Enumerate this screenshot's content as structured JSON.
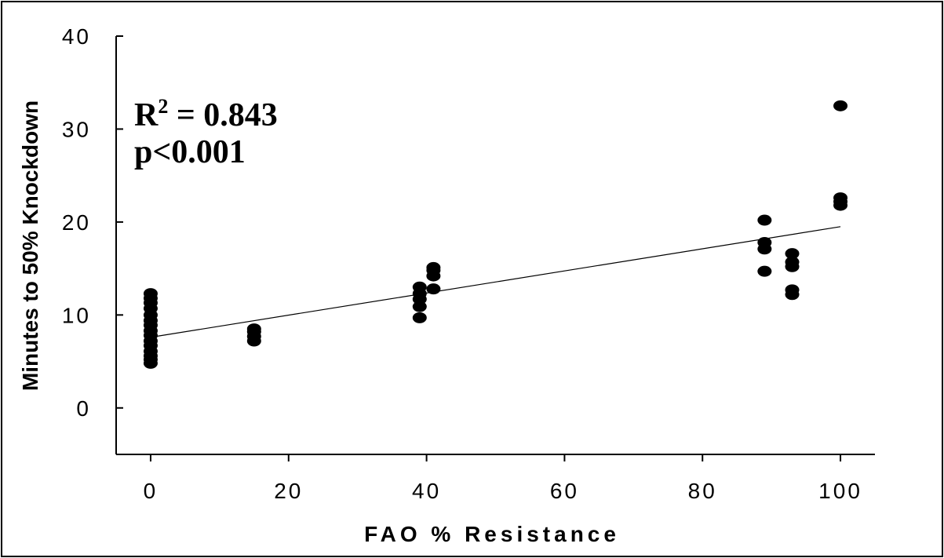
{
  "chart_data": {
    "type": "scatter",
    "xlabel": "FAO % Resistance",
    "ylabel": "Minutes to 50% Knockdown",
    "xlim": [
      -5,
      105
    ],
    "ylim": [
      -5,
      40
    ],
    "xticks": [
      0,
      20,
      40,
      60,
      80,
      100
    ],
    "yticks": [
      0,
      10,
      20,
      30,
      40
    ],
    "grid": false,
    "annotation": {
      "r2_prefix": "R",
      "r2_sup": "2",
      "r2_value": " = 0.843",
      "p": "p<0.001"
    },
    "points": [
      {
        "x": 0,
        "y": 4.8
      },
      {
        "x": 0,
        "y": 5.2
      },
      {
        "x": 0,
        "y": 5.6
      },
      {
        "x": 0,
        "y": 6.1
      },
      {
        "x": 0,
        "y": 6.7
      },
      {
        "x": 0,
        "y": 7.2
      },
      {
        "x": 0,
        "y": 7.8
      },
      {
        "x": 0,
        "y": 8.3
      },
      {
        "x": 0,
        "y": 8.9
      },
      {
        "x": 0,
        "y": 9.4
      },
      {
        "x": 0,
        "y": 10.0
      },
      {
        "x": 0,
        "y": 10.7
      },
      {
        "x": 0,
        "y": 11.3
      },
      {
        "x": 0,
        "y": 11.8
      },
      {
        "x": 0,
        "y": 12.3
      },
      {
        "x": 15,
        "y": 7.2
      },
      {
        "x": 15,
        "y": 7.7
      },
      {
        "x": 15,
        "y": 8.2
      },
      {
        "x": 15,
        "y": 8.5
      },
      {
        "x": 39,
        "y": 9.7
      },
      {
        "x": 39,
        "y": 10.9
      },
      {
        "x": 39,
        "y": 11.7
      },
      {
        "x": 39,
        "y": 12.3
      },
      {
        "x": 39,
        "y": 13.0
      },
      {
        "x": 41,
        "y": 12.8
      },
      {
        "x": 41,
        "y": 14.2
      },
      {
        "x": 41,
        "y": 14.8
      },
      {
        "x": 41,
        "y": 15.1
      },
      {
        "x": 89,
        "y": 14.7
      },
      {
        "x": 89,
        "y": 17.1
      },
      {
        "x": 89,
        "y": 17.8
      },
      {
        "x": 89,
        "y": 20.2
      },
      {
        "x": 93,
        "y": 12.2
      },
      {
        "x": 93,
        "y": 12.7
      },
      {
        "x": 93,
        "y": 15.2
      },
      {
        "x": 93,
        "y": 15.7
      },
      {
        "x": 93,
        "y": 16.6
      },
      {
        "x": 100,
        "y": 21.8
      },
      {
        "x": 100,
        "y": 22.2
      },
      {
        "x": 100,
        "y": 22.6
      },
      {
        "x": 100,
        "y": 32.5
      }
    ],
    "fit_line": {
      "x": [
        0,
        100
      ],
      "y": [
        7.6,
        19.5
      ]
    }
  }
}
